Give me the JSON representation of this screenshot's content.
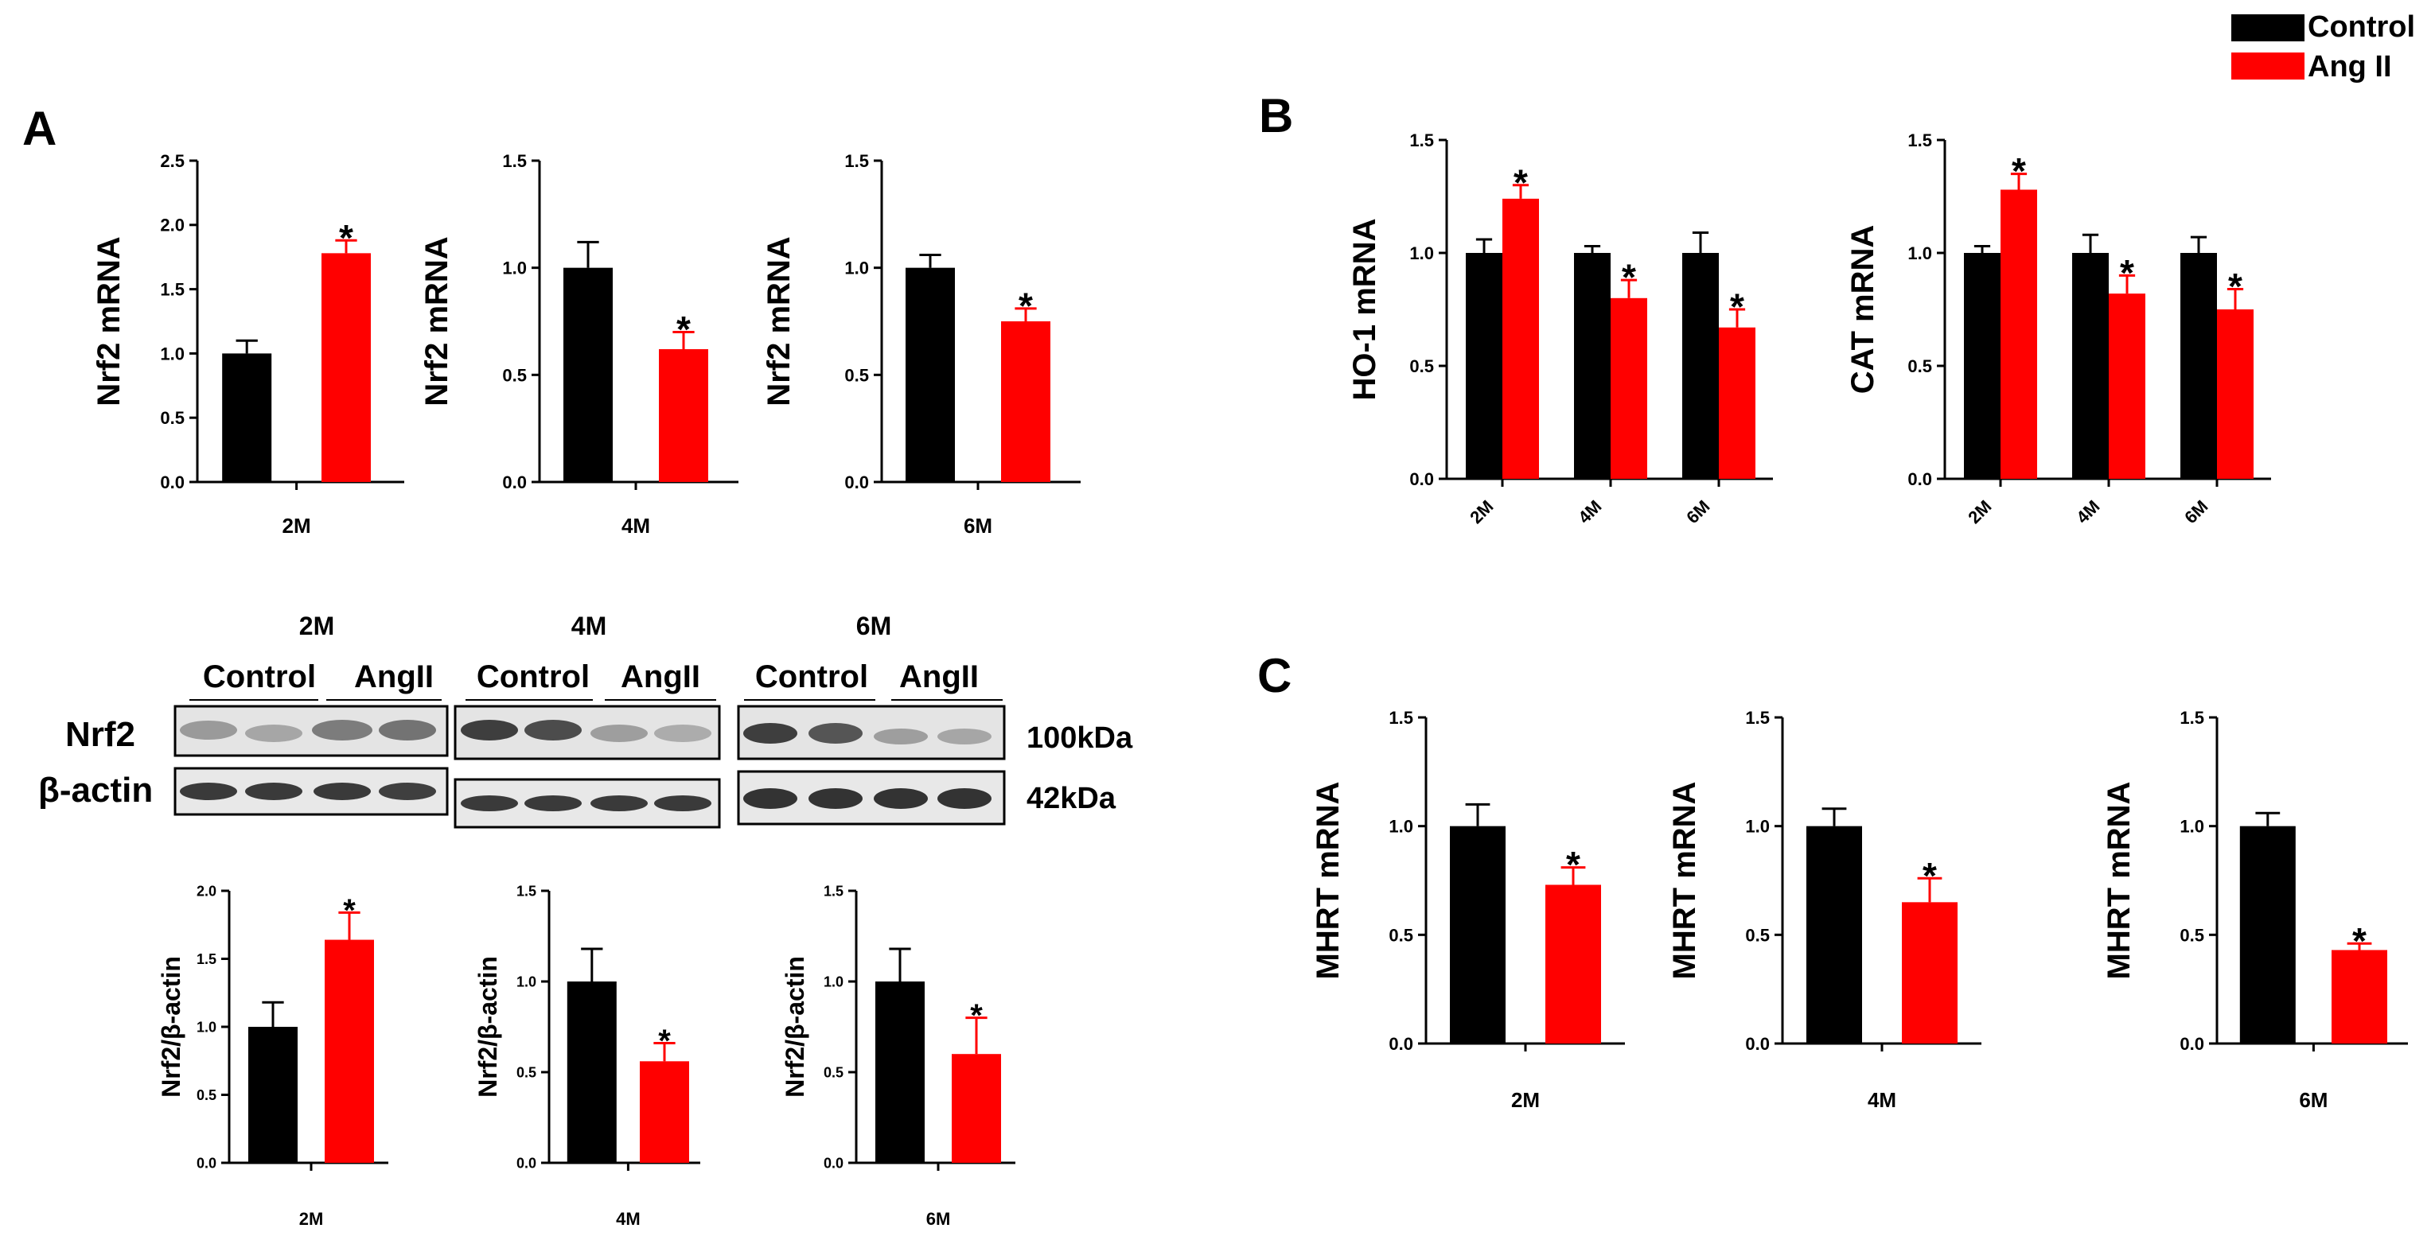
{
  "colors": {
    "control": "#000000",
    "ang": "#ff0000",
    "axis": "#000000"
  },
  "legend": {
    "control_label": "Control",
    "ang_label": "Ang II"
  },
  "panels": {
    "a_label": "A",
    "b_label": "B",
    "c_label": "C"
  },
  "blot": {
    "groups": [
      {
        "time": "2M",
        "control_label": "Control",
        "ang_label": "AngII"
      },
      {
        "time": "4M",
        "control_label": "Control",
        "ang_label": "AngII"
      },
      {
        "time": "6M",
        "control_label": "Control",
        "ang_label": "AngII"
      }
    ],
    "row_labels": [
      "Nrf2",
      "β-actin"
    ],
    "sizes": [
      "100kDa",
      "42kDa"
    ]
  },
  "chart_data": [
    {
      "id": "a_mrna_2m",
      "type": "bar",
      "ylabel": "Nrf2 mRNA",
      "categories": [
        "2M"
      ],
      "ylim": [
        0,
        2.5
      ],
      "yticks": [
        "0.0",
        "0.5",
        "1.0",
        "1.5",
        "2.0",
        "2.5"
      ],
      "series": [
        {
          "name": "Control",
          "values": [
            1.0
          ],
          "errors": [
            0.1
          ]
        },
        {
          "name": "Ang II",
          "values": [
            1.78
          ],
          "errors": [
            0.1
          ]
        }
      ],
      "significance": [
        "*"
      ]
    },
    {
      "id": "a_mrna_4m",
      "type": "bar",
      "ylabel": "Nrf2 mRNA",
      "categories": [
        "4M"
      ],
      "ylim": [
        0,
        1.5
      ],
      "yticks": [
        "0.0",
        "0.5",
        "1.0",
        "1.5"
      ],
      "series": [
        {
          "name": "Control",
          "values": [
            1.0
          ],
          "errors": [
            0.12
          ]
        },
        {
          "name": "Ang II",
          "values": [
            0.62
          ],
          "errors": [
            0.08
          ]
        }
      ],
      "significance": [
        "*"
      ]
    },
    {
      "id": "a_mrna_6m",
      "type": "bar",
      "ylabel": "Nrf2 mRNA",
      "categories": [
        "6M"
      ],
      "ylim": [
        0,
        1.5
      ],
      "yticks": [
        "0.0",
        "0.5",
        "1.0",
        "1.5"
      ],
      "series": [
        {
          "name": "Control",
          "values": [
            1.0
          ],
          "errors": [
            0.06
          ]
        },
        {
          "name": "Ang II",
          "values": [
            0.75
          ],
          "errors": [
            0.06
          ]
        }
      ],
      "significance": [
        "*"
      ]
    },
    {
      "id": "a_prot_2m",
      "type": "bar",
      "ylabel": "Nrf2/β-actin",
      "categories": [
        "2M"
      ],
      "ylim": [
        0,
        2.0
      ],
      "yticks": [
        "0.0",
        "0.5",
        "1.0",
        "1.5",
        "2.0"
      ],
      "series": [
        {
          "name": "Control",
          "values": [
            1.0
          ],
          "errors": [
            0.18
          ]
        },
        {
          "name": "Ang II",
          "values": [
            1.64
          ],
          "errors": [
            0.2
          ]
        }
      ],
      "significance": [
        "*"
      ]
    },
    {
      "id": "a_prot_4m",
      "type": "bar",
      "ylabel": "Nrf2/β-actin",
      "categories": [
        "4M"
      ],
      "ylim": [
        0,
        1.5
      ],
      "yticks": [
        "0.0",
        "0.5",
        "1.0",
        "1.5"
      ],
      "series": [
        {
          "name": "Control",
          "values": [
            1.0
          ],
          "errors": [
            0.18
          ]
        },
        {
          "name": "Ang II",
          "values": [
            0.56
          ],
          "errors": [
            0.1
          ]
        }
      ],
      "significance": [
        "*"
      ]
    },
    {
      "id": "a_prot_6m",
      "type": "bar",
      "ylabel": "Nrf2/β-actin",
      "categories": [
        "6M"
      ],
      "ylim": [
        0,
        1.5
      ],
      "yticks": [
        "0.0",
        "0.5",
        "1.0",
        "1.5"
      ],
      "series": [
        {
          "name": "Control",
          "values": [
            1.0
          ],
          "errors": [
            0.18
          ]
        },
        {
          "name": "Ang II",
          "values": [
            0.6
          ],
          "errors": [
            0.2
          ]
        }
      ],
      "significance": [
        "*"
      ]
    },
    {
      "id": "b_ho1",
      "type": "bar",
      "ylabel": "HO-1 mRNA",
      "categories": [
        "2M",
        "4M",
        "6M"
      ],
      "ylim": [
        0,
        1.5
      ],
      "yticks": [
        "0.0",
        "0.5",
        "1.0",
        "1.5"
      ],
      "series": [
        {
          "name": "Control",
          "values": [
            1.0,
            1.0,
            1.0
          ],
          "errors": [
            0.06,
            0.03,
            0.09
          ]
        },
        {
          "name": "Ang II",
          "values": [
            1.24,
            0.8,
            0.67
          ],
          "errors": [
            0.06,
            0.08,
            0.08
          ]
        }
      ],
      "significance": [
        "*",
        "*",
        "*"
      ]
    },
    {
      "id": "b_cat",
      "type": "bar",
      "ylabel": "CAT mRNA",
      "categories": [
        "2M",
        "4M",
        "6M"
      ],
      "ylim": [
        0,
        1.5
      ],
      "yticks": [
        "0.0",
        "0.5",
        "1.0",
        "1.5"
      ],
      "series": [
        {
          "name": "Control",
          "values": [
            1.0,
            1.0,
            1.0
          ],
          "errors": [
            0.03,
            0.08,
            0.07
          ]
        },
        {
          "name": "Ang II",
          "values": [
            1.28,
            0.82,
            0.75
          ],
          "errors": [
            0.07,
            0.08,
            0.09
          ]
        }
      ],
      "significance": [
        "*",
        "*",
        "*"
      ]
    },
    {
      "id": "c_mhrt_2m",
      "type": "bar",
      "ylabel": "MHRT mRNA",
      "categories": [
        "2M"
      ],
      "ylim": [
        0,
        1.5
      ],
      "yticks": [
        "0.0",
        "0.5",
        "1.0",
        "1.5"
      ],
      "series": [
        {
          "name": "Control",
          "values": [
            1.0
          ],
          "errors": [
            0.1
          ]
        },
        {
          "name": "Ang II",
          "values": [
            0.73
          ],
          "errors": [
            0.08
          ]
        }
      ],
      "significance": [
        "*"
      ]
    },
    {
      "id": "c_mhrt_4m",
      "type": "bar",
      "ylabel": "MHRT mRNA",
      "categories": [
        "4M"
      ],
      "ylim": [
        0,
        1.5
      ],
      "yticks": [
        "0.0",
        "0.5",
        "1.0",
        "1.5"
      ],
      "series": [
        {
          "name": "Control",
          "values": [
            1.0
          ],
          "errors": [
            0.08
          ]
        },
        {
          "name": "Ang II",
          "values": [
            0.65
          ],
          "errors": [
            0.11
          ]
        }
      ],
      "significance": [
        "*"
      ]
    },
    {
      "id": "c_mhrt_6m",
      "type": "bar",
      "ylabel": "MHRT mRNA",
      "categories": [
        "6M"
      ],
      "ylim": [
        0,
        1.5
      ],
      "yticks": [
        "0.0",
        "0.5",
        "1.0",
        "1.5"
      ],
      "series": [
        {
          "name": "Control",
          "values": [
            1.0
          ],
          "errors": [
            0.06
          ]
        },
        {
          "name": "Ang II",
          "values": [
            0.43
          ],
          "errors": [
            0.03
          ]
        }
      ],
      "significance": [
        "*"
      ]
    }
  ]
}
